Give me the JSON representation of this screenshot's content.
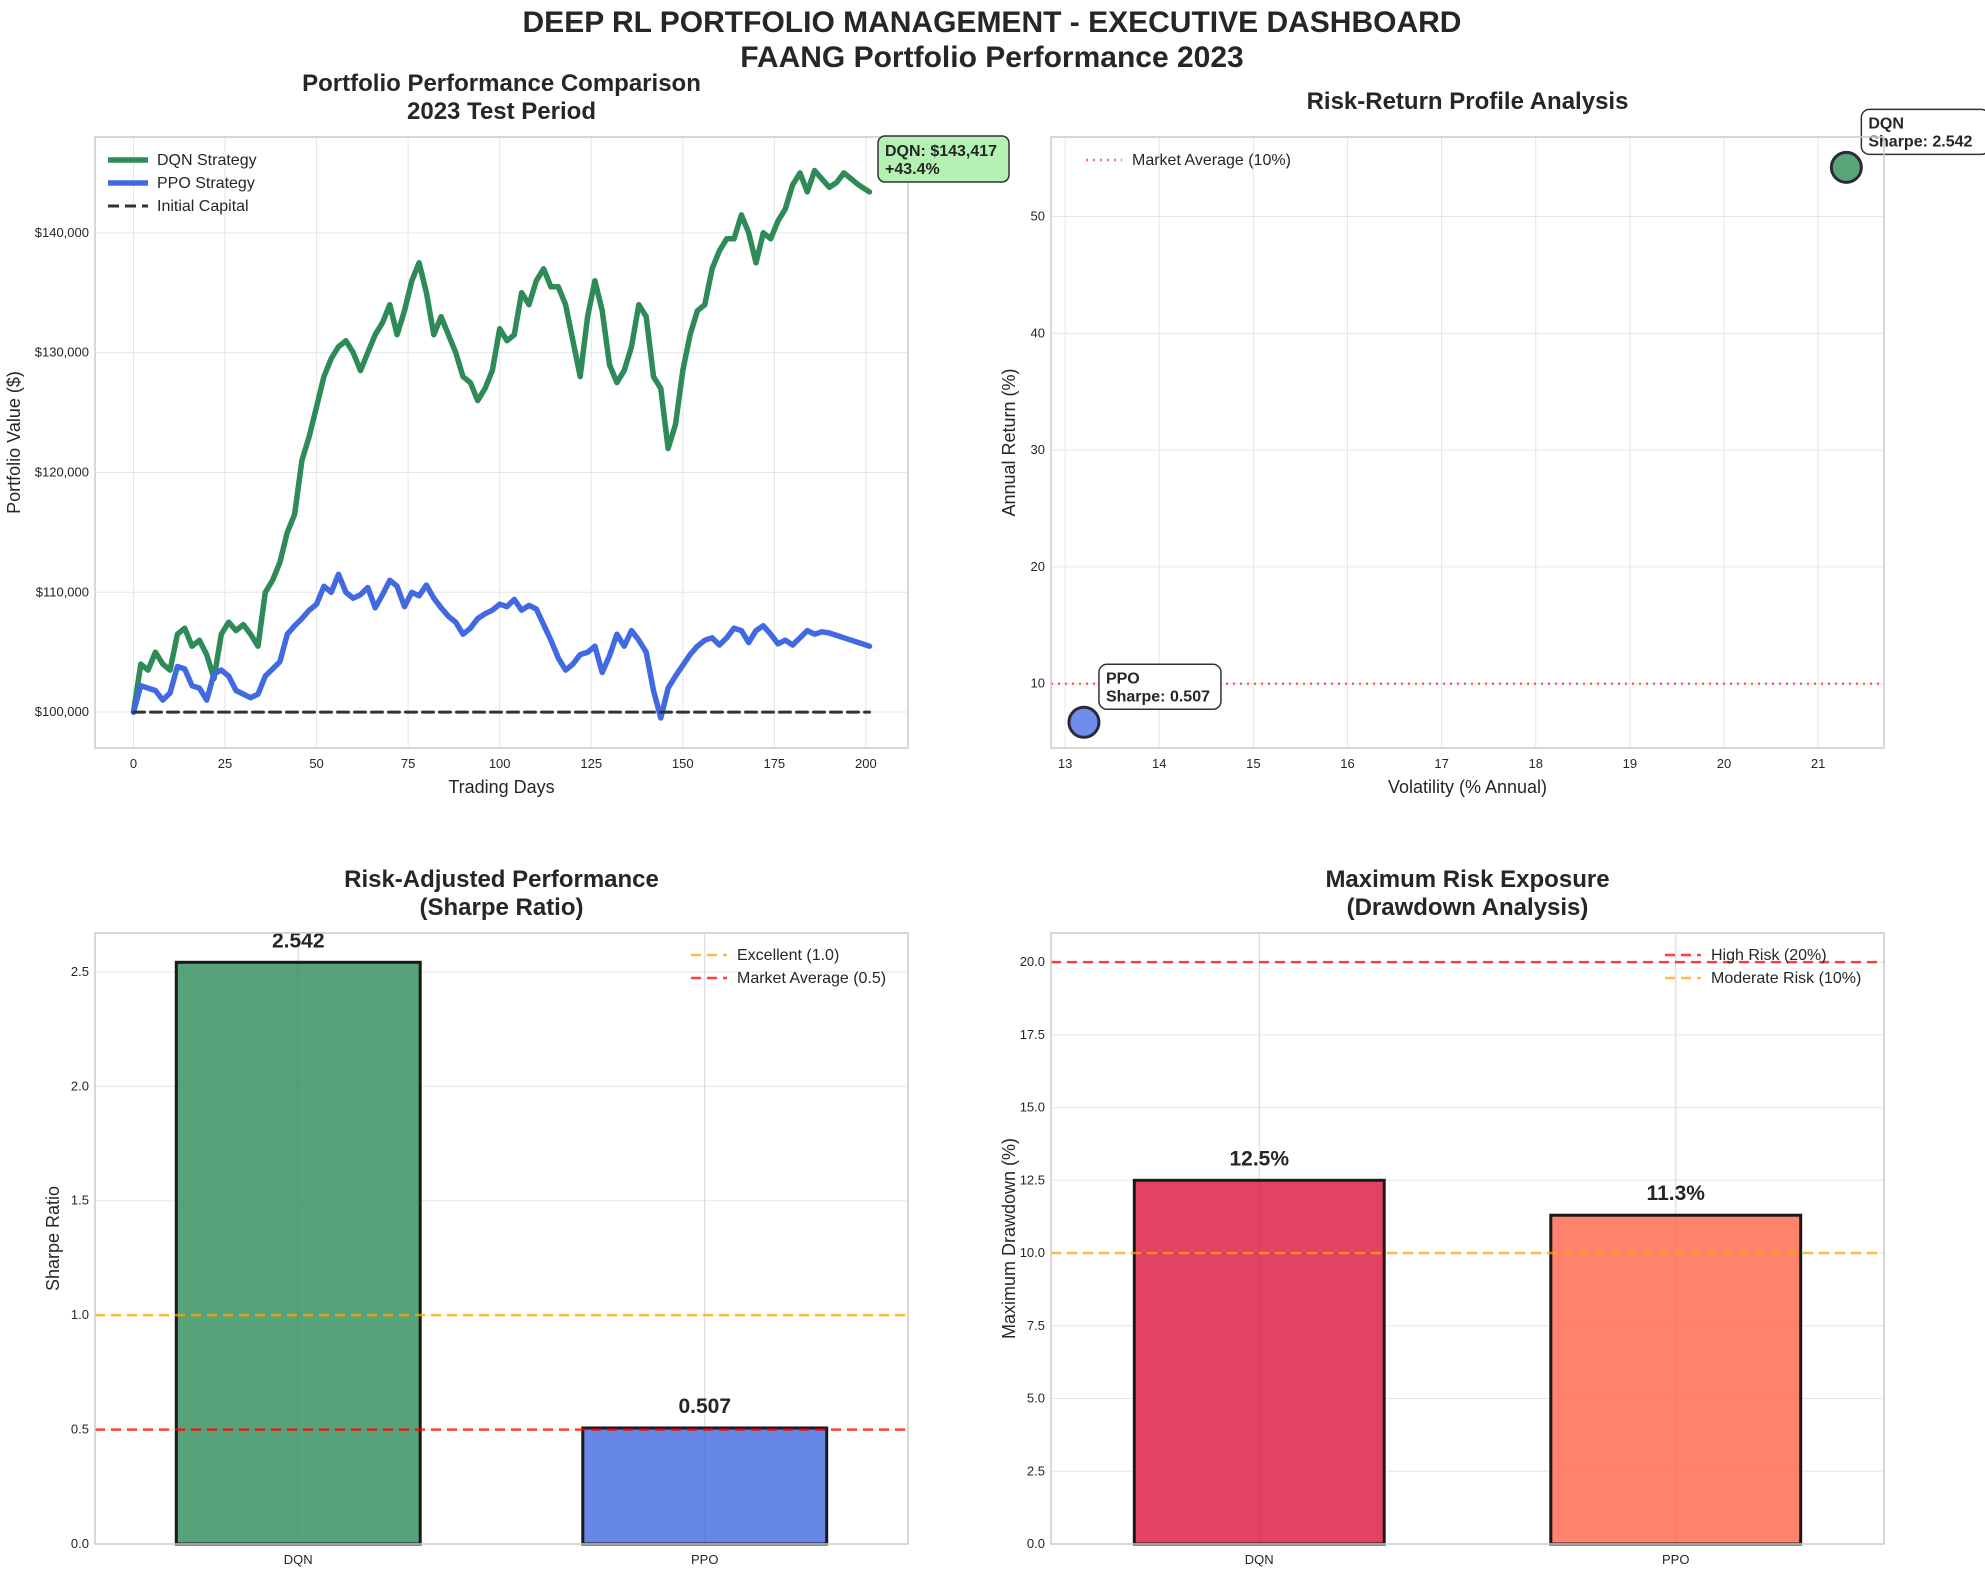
{
  "dashboard": {
    "title_line1": "DEEP RL PORTFOLIO MANAGEMENT - EXECUTIVE DASHBOARD",
    "title_line2": "FAANG Portfolio Performance 2023"
  },
  "colors": {
    "dqn_line": "#2e8b57",
    "ppo_line": "#4169e1",
    "dqn_bar": "#2e8b57",
    "ppo_bar": "#4169e1",
    "dqn_drawdown": "#dc143c",
    "ppo_drawdown": "#ff6347",
    "orange_ref": "#ffa500",
    "red_ref": "#ff0000",
    "annotation_green": "#b3f2b3",
    "grid": "#e6e6e6",
    "frame": "#cccccc"
  },
  "chart_data": [
    {
      "id": "performance",
      "type": "line",
      "title": "Portfolio Performance Comparison\n2023 Test Period",
      "xlabel": "Trading Days",
      "ylabel": "Portfolio Value ($)",
      "xlim": [
        -10.5,
        211.5
      ],
      "ylim": [
        97000,
        148000
      ],
      "xticks": [
        0,
        25,
        50,
        75,
        100,
        125,
        150,
        175,
        200
      ],
      "yticks": [
        100000,
        110000,
        120000,
        130000,
        140000
      ],
      "ytick_labels": [
        "$100,000",
        "$110,000",
        "$120,000",
        "$130,000",
        "$140,000"
      ],
      "legend_position": "upper-left",
      "grid": true,
      "annotation": {
        "text_line1": "DQN: $143,417",
        "text_line2": "+43.4%",
        "x": 201,
        "y": 143417
      },
      "x": [
        0,
        2,
        4,
        6,
        8,
        10,
        12,
        14,
        16,
        18,
        20,
        22,
        24,
        26,
        28,
        30,
        32,
        34,
        36,
        38,
        40,
        42,
        44,
        46,
        48,
        50,
        52,
        54,
        56,
        58,
        60,
        62,
        64,
        66,
        68,
        70,
        72,
        74,
        76,
        78,
        80,
        82,
        84,
        86,
        88,
        90,
        92,
        94,
        96,
        98,
        100,
        102,
        104,
        106,
        108,
        110,
        112,
        114,
        116,
        118,
        120,
        122,
        124,
        126,
        128,
        130,
        132,
        134,
        136,
        138,
        140,
        142,
        144,
        146,
        148,
        150,
        152,
        154,
        156,
        158,
        160,
        162,
        164,
        166,
        168,
        170,
        172,
        174,
        176,
        178,
        180,
        182,
        184,
        186,
        188,
        190,
        192,
        194,
        196,
        198,
        201
      ],
      "series": [
        {
          "name": "DQN Strategy",
          "values": [
            100000,
            104000,
            103500,
            105000,
            104000,
            103500,
            106500,
            107000,
            105500,
            106000,
            104800,
            102800,
            106500,
            107500,
            106800,
            107300,
            106500,
            105500,
            110000,
            111000,
            112500,
            115000,
            116500,
            121000,
            123000,
            125500,
            128000,
            129500,
            130500,
            131000,
            130000,
            128500,
            130000,
            131500,
            132500,
            134000,
            131500,
            133500,
            136000,
            137500,
            135000,
            131500,
            133000,
            131500,
            130000,
            128000,
            127500,
            126000,
            127000,
            128500,
            132000,
            131000,
            131500,
            135000,
            134000,
            136000,
            137000,
            135500,
            135500,
            134000,
            131000,
            128000,
            133000,
            136000,
            133500,
            129000,
            127500,
            128500,
            130500,
            134000,
            133000,
            128000,
            127000,
            122000,
            124000,
            128500,
            131500,
            133500,
            134000,
            137000,
            138500,
            139500,
            139500,
            141500,
            140000,
            137500,
            140000,
            139500,
            141000,
            142000,
            144000,
            145000,
            143417,
            145200,
            144500,
            143800,
            144200,
            145000,
            144500,
            144000,
            143417
          ]
        },
        {
          "name": "PPO Strategy",
          "values": [
            100000,
            102200,
            102000,
            101800,
            101000,
            101600,
            103800,
            103600,
            102200,
            102000,
            101000,
            103200,
            103500,
            103000,
            101800,
            101500,
            101200,
            101500,
            103000,
            103600,
            104200,
            106500,
            107200,
            107800,
            108500,
            109000,
            110500,
            110000,
            111500,
            110000,
            109500,
            109800,
            110400,
            108700,
            109800,
            111000,
            110500,
            108800,
            110000,
            109700,
            110600,
            109500,
            108700,
            108000,
            107500,
            106500,
            107000,
            107800,
            108200,
            108500,
            109000,
            108800,
            109400,
            108500,
            108900,
            108600,
            107300,
            106000,
            104500,
            103500,
            104000,
            104800,
            105000,
            105500,
            103300,
            104700,
            106500,
            105500,
            106800,
            106000,
            105000,
            101800,
            99500,
            102000,
            103000,
            103900,
            104800,
            105500,
            106000,
            106200,
            105600,
            106200,
            107000,
            106800,
            105800,
            106800,
            107200,
            106500,
            105700,
            106000,
            105600,
            106200,
            106800,
            106500,
            106700,
            106600,
            106400,
            106200,
            106000,
            105800,
            105500
          ]
        },
        {
          "name": "Initial Capital",
          "values": [
            100000,
            100000
          ],
          "x": [
            0,
            201
          ]
        }
      ]
    },
    {
      "id": "risk_return",
      "type": "scatter",
      "title": "Risk-Return Profile Analysis",
      "xlabel": "Volatility (% Annual)",
      "ylabel": "Annual Return (%)",
      "xlim": [
        12.85,
        21.7
      ],
      "ylim": [
        4.5,
        56.8
      ],
      "xticks": [
        13,
        14,
        15,
        16,
        17,
        18,
        19,
        20,
        21
      ],
      "yticks": [
        10,
        20,
        30,
        40,
        50
      ],
      "grid": true,
      "legend_position": "upper-left",
      "reference_line": {
        "name": "Market Average (10%)",
        "y": 10
      },
      "points": [
        {
          "name": "DQN",
          "x": 21.3,
          "y": 54.2,
          "label_line1": "DQN",
          "label_line2": "Sharpe: 2.542"
        },
        {
          "name": "PPO",
          "x": 13.2,
          "y": 6.7,
          "label_line1": "PPO",
          "label_line2": "Sharpe: 0.507"
        }
      ]
    },
    {
      "id": "sharpe",
      "type": "bar",
      "title": "Risk-Adjusted Performance\n(Sharpe Ratio)",
      "xlabel": "",
      "ylabel": "Sharpe Ratio",
      "categories": [
        "DQN",
        "PPO"
      ],
      "values": [
        2.542,
        0.507
      ],
      "value_labels": [
        "2.542",
        "0.507"
      ],
      "ylim": [
        0,
        2.67
      ],
      "yticks": [
        0.0,
        0.5,
        1.0,
        1.5,
        2.0,
        2.5
      ],
      "ytick_labels": [
        "0.0",
        "0.5",
        "1.0",
        "1.5",
        "2.0",
        "2.5"
      ],
      "legend_position": "upper-right",
      "reference_lines": [
        {
          "name": "Excellent (1.0)",
          "y": 1.0,
          "color": "#ffa500"
        },
        {
          "name": "Market Average (0.5)",
          "y": 0.5,
          "color": "#ff0000"
        }
      ]
    },
    {
      "id": "drawdown",
      "type": "bar",
      "title": "Maximum Risk Exposure\n(Drawdown Analysis)",
      "xlabel": "",
      "ylabel": "Maximum Drawdown (%)",
      "categories": [
        "DQN",
        "PPO"
      ],
      "values": [
        12.5,
        11.3
      ],
      "value_labels": [
        "12.5%",
        "11.3%"
      ],
      "ylim": [
        0,
        21.0
      ],
      "yticks": [
        0.0,
        2.5,
        5.0,
        7.5,
        10.0,
        12.5,
        15.0,
        17.5,
        20.0
      ],
      "ytick_labels": [
        "0.0",
        "2.5",
        "5.0",
        "7.5",
        "10.0",
        "12.5",
        "15.0",
        "17.5",
        "20.0"
      ],
      "legend_position": "upper-right",
      "reference_lines": [
        {
          "name": "High Risk (20%)",
          "y": 20,
          "color": "#ff0000"
        },
        {
          "name": "Moderate Risk (10%)",
          "y": 10,
          "color": "#ffa500"
        }
      ]
    }
  ]
}
